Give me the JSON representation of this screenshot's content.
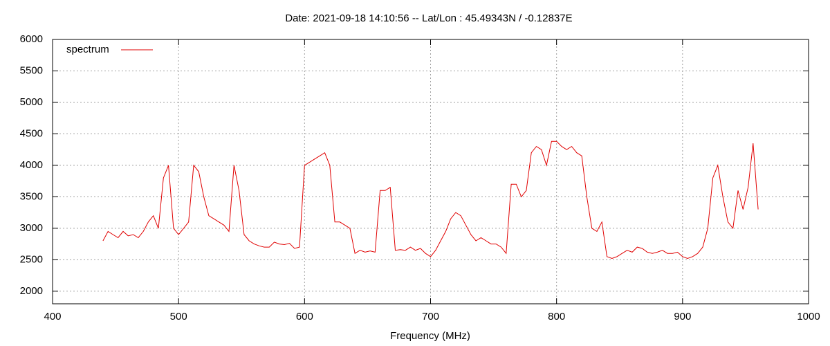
{
  "chart_data": {
    "type": "line",
    "title": "Date: 2021-09-18 14:10:56  --  Lat/Lon : 45.49343N / -0.12837E",
    "x_label": "Frequency (MHz)",
    "x": [
      440,
      444,
      448,
      452,
      456,
      460,
      464,
      468,
      472,
      476,
      480,
      484,
      488,
      492,
      496,
      500,
      504,
      508,
      512,
      516,
      520,
      524,
      528,
      532,
      536,
      540,
      544,
      548,
      552,
      556,
      560,
      564,
      568,
      572,
      576,
      580,
      584,
      588,
      592,
      596,
      600,
      604,
      608,
      612,
      616,
      620,
      624,
      628,
      632,
      636,
      640,
      644,
      648,
      652,
      656,
      660,
      664,
      668,
      672,
      676,
      680,
      684,
      688,
      692,
      696,
      700,
      704,
      708,
      712,
      716,
      720,
      724,
      728,
      732,
      736,
      740,
      744,
      748,
      752,
      756,
      760,
      764,
      768,
      772,
      776,
      780,
      784,
      788,
      792,
      796,
      800,
      804,
      808,
      812,
      816,
      820,
      824,
      828,
      832,
      836,
      840,
      844,
      848,
      852,
      856,
      860,
      864,
      868,
      872,
      876,
      880,
      884,
      888,
      892,
      896,
      900,
      904,
      908,
      912,
      916,
      920,
      924,
      928,
      932,
      936,
      940,
      944,
      948,
      952,
      956,
      960
    ],
    "series": [
      {
        "name": "spectrum",
        "color": "#e00000",
        "values": [
          2800,
          2950,
          2900,
          2850,
          2950,
          2880,
          2900,
          2850,
          2950,
          3100,
          3200,
          3000,
          3800,
          4000,
          3000,
          2900,
          3000,
          3100,
          4000,
          3900,
          3500,
          3200,
          3150,
          3100,
          3050,
          2950,
          4000,
          3600,
          2900,
          2800,
          2750,
          2720,
          2700,
          2700,
          2780,
          2750,
          2740,
          2760,
          2680,
          2700,
          4000,
          4050,
          4100,
          4150,
          4200,
          4000,
          3100,
          3100,
          3050,
          3000,
          2600,
          2650,
          2620,
          2640,
          2620,
          3600,
          3600,
          3650,
          2650,
          2660,
          2650,
          2700,
          2650,
          2680,
          2600,
          2550,
          2650,
          2800,
          2950,
          3150,
          3250,
          3200,
          3050,
          2900,
          2800,
          2850,
          2800,
          2750,
          2750,
          2700,
          2600,
          3700,
          3700,
          3500,
          3600,
          4200,
          4300,
          4250,
          4000,
          4380,
          4380,
          4300,
          4250,
          4300,
          4200,
          4150,
          3500,
          3000,
          2950,
          3100,
          2550,
          2520,
          2550,
          2600,
          2650,
          2620,
          2700,
          2680,
          2620,
          2600,
          2620,
          2650,
          2600,
          2600,
          2620,
          2550,
          2520,
          2550,
          2600,
          2700,
          3000,
          3800,
          4000,
          3500,
          3100,
          3000,
          3600,
          3300,
          3650,
          4350,
          3300
        ]
      }
    ],
    "xlim": [
      400,
      1000
    ],
    "xticks": [
      400,
      500,
      600,
      700,
      800,
      900,
      1000
    ],
    "ylim": [
      1800,
      6000
    ],
    "yticks": [
      2000,
      2500,
      3000,
      3500,
      4000,
      4500,
      5000,
      5500,
      6000
    ],
    "grid": true,
    "legend": "top-left"
  }
}
